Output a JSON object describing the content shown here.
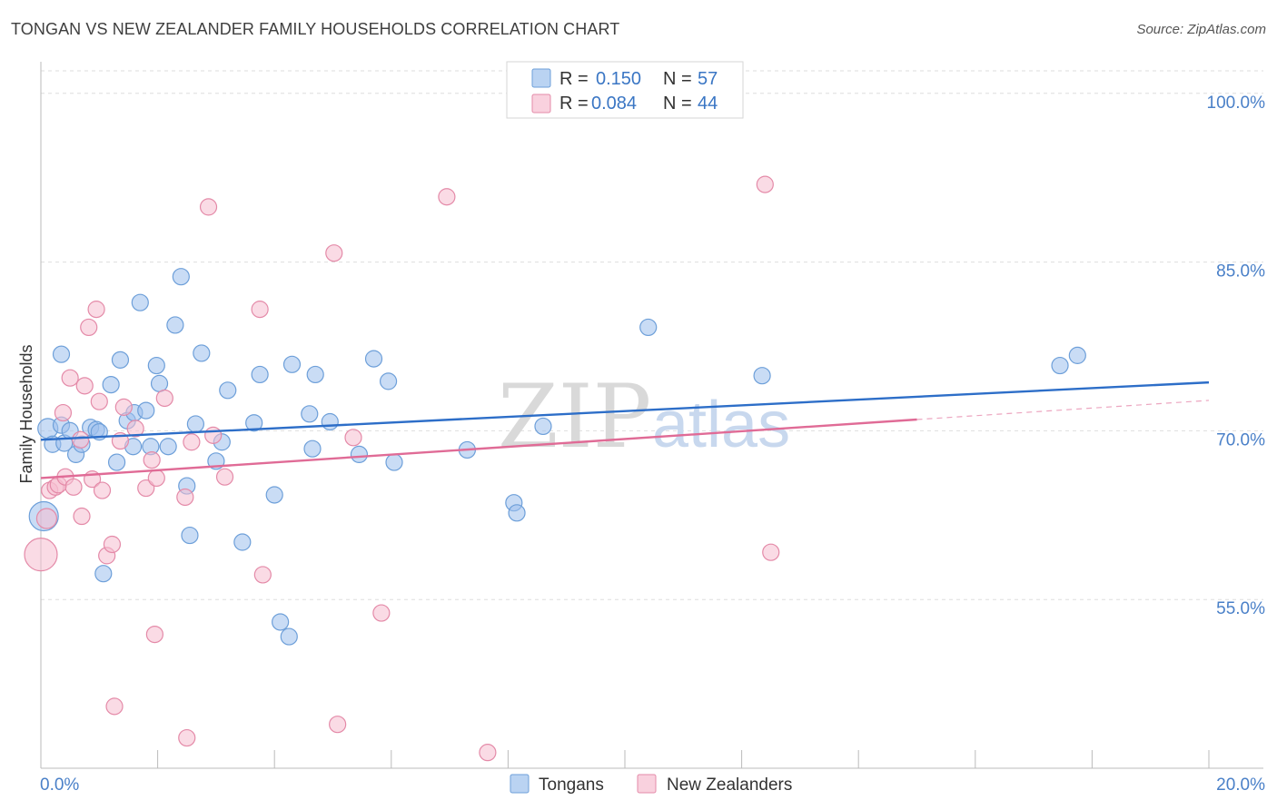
{
  "header": {
    "title": "TONGAN VS NEW ZEALANDER FAMILY HOUSEHOLDS CORRELATION CHART",
    "source": "Source: ZipAtlas.com"
  },
  "watermark": {
    "zip": "ZIP",
    "atlas": "atlas"
  },
  "chart_data": {
    "type": "scatter",
    "title": "TONGAN VS NEW ZEALANDER FAMILY HOUSEHOLDS CORRELATION CHART",
    "xlabel": "",
    "ylabel": "Family Households",
    "xlim": [
      0.0,
      20.0
    ],
    "ylim": [
      40.0,
      102.0
    ],
    "x_tick_labels": [
      "0.0%",
      "20.0%"
    ],
    "y_ticks": [
      55.0,
      70.0,
      85.0,
      100.0
    ],
    "y_tick_labels": [
      "55.0%",
      "70.0%",
      "85.0%",
      "100.0%"
    ],
    "grid": true,
    "legend": {
      "position": "top-center",
      "entries": [
        {
          "r_label": "R =",
          "r": "0.150",
          "n_label": "N =",
          "n": "57"
        },
        {
          "r_label": "R =",
          "r": "0.084",
          "n_label": "N =",
          "n": "44"
        }
      ]
    },
    "series": [
      {
        "name": "Tongans",
        "color": "#9dc0ec",
        "stroke": "#6d9fd9",
        "line_color": "#2d6ec8",
        "trend": {
          "x": [
            0.0,
            20.0
          ],
          "y": [
            69.2,
            74.3
          ]
        },
        "points": [
          [
            0.05,
            62.4,
            16
          ],
          [
            0.12,
            70.2,
            11
          ],
          [
            0.2,
            68.8,
            9
          ],
          [
            0.35,
            70.5,
            9
          ],
          [
            0.4,
            68.9,
            9
          ],
          [
            0.5,
            70.0,
            9
          ],
          [
            0.6,
            67.9,
            9
          ],
          [
            0.7,
            68.8,
            9
          ],
          [
            0.35,
            76.8,
            9
          ],
          [
            0.85,
            70.3,
            9
          ],
          [
            0.95,
            70.1,
            9
          ],
          [
            1.0,
            69.9,
            9
          ],
          [
            1.07,
            57.3,
            9
          ],
          [
            1.2,
            74.1,
            9
          ],
          [
            1.3,
            67.2,
            9
          ],
          [
            1.36,
            76.3,
            9
          ],
          [
            1.48,
            70.9,
            9
          ],
          [
            1.58,
            68.6,
            9
          ],
          [
            1.6,
            71.6,
            9
          ],
          [
            1.7,
            81.4,
            9
          ],
          [
            1.8,
            71.8,
            9
          ],
          [
            1.88,
            68.6,
            9
          ],
          [
            1.98,
            75.8,
            9
          ],
          [
            2.03,
            74.2,
            9
          ],
          [
            2.18,
            68.6,
            9
          ],
          [
            2.3,
            79.4,
            9
          ],
          [
            2.4,
            83.7,
            9
          ],
          [
            2.5,
            65.1,
            9
          ],
          [
            2.55,
            60.7,
            9
          ],
          [
            2.65,
            70.6,
            9
          ],
          [
            2.75,
            76.9,
            9
          ],
          [
            3.0,
            67.3,
            9
          ],
          [
            3.1,
            69.0,
            9
          ],
          [
            3.2,
            73.6,
            9
          ],
          [
            3.45,
            60.1,
            9
          ],
          [
            3.65,
            70.7,
            9
          ],
          [
            3.75,
            75.0,
            9
          ],
          [
            4.0,
            64.3,
            9
          ],
          [
            4.1,
            53.0,
            9
          ],
          [
            4.25,
            51.7,
            9
          ],
          [
            4.3,
            75.9,
            9
          ],
          [
            4.6,
            71.5,
            9
          ],
          [
            4.65,
            68.4,
            9
          ],
          [
            4.7,
            75.0,
            9
          ],
          [
            4.95,
            70.8,
            9
          ],
          [
            5.45,
            67.9,
            9
          ],
          [
            5.7,
            76.4,
            9
          ],
          [
            5.95,
            74.4,
            9
          ],
          [
            6.05,
            67.2,
            9
          ],
          [
            7.3,
            68.3,
            9
          ],
          [
            8.1,
            63.6,
            9
          ],
          [
            8.15,
            62.7,
            9
          ],
          [
            8.6,
            70.4,
            9
          ],
          [
            10.4,
            79.2,
            9
          ],
          [
            12.35,
            74.9,
            9
          ],
          [
            17.45,
            75.8,
            9
          ],
          [
            17.75,
            76.7,
            9
          ]
        ]
      },
      {
        "name": "New Zealanders",
        "color": "#f6bed0",
        "stroke": "#e48aa8",
        "line_color": "#e06b96",
        "trend": {
          "x": [
            0.0,
            15.0
          ],
          "y": [
            65.8,
            71.0
          ]
        },
        "trend_dashed": {
          "x": [
            15.0,
            20.0
          ],
          "y": [
            71.0,
            72.7
          ]
        },
        "points": [
          [
            0.0,
            59.0,
            18
          ],
          [
            0.1,
            62.2,
            11
          ],
          [
            0.15,
            64.7,
            9
          ],
          [
            0.25,
            65.0,
            9
          ],
          [
            0.3,
            65.2,
            9
          ],
          [
            0.38,
            71.6,
            9
          ],
          [
            0.42,
            65.9,
            9
          ],
          [
            0.5,
            74.7,
            9
          ],
          [
            0.56,
            65.0,
            9
          ],
          [
            0.68,
            69.2,
            9
          ],
          [
            0.7,
            62.4,
            9
          ],
          [
            0.75,
            74.0,
            9
          ],
          [
            0.82,
            79.2,
            9
          ],
          [
            0.88,
            65.7,
            9
          ],
          [
            0.95,
            80.8,
            9
          ],
          [
            1.0,
            72.6,
            9
          ],
          [
            1.05,
            64.7,
            9
          ],
          [
            1.13,
            58.9,
            9
          ],
          [
            1.22,
            59.9,
            9
          ],
          [
            1.26,
            45.5,
            9
          ],
          [
            1.36,
            69.1,
            9
          ],
          [
            1.42,
            72.1,
            9
          ],
          [
            1.62,
            70.2,
            9
          ],
          [
            1.8,
            64.9,
            9
          ],
          [
            1.9,
            67.4,
            9
          ],
          [
            1.95,
            51.9,
            9
          ],
          [
            1.98,
            65.8,
            9
          ],
          [
            2.12,
            72.9,
            9
          ],
          [
            2.47,
            64.1,
            9
          ],
          [
            2.5,
            42.7,
            9
          ],
          [
            2.58,
            69.0,
            9
          ],
          [
            2.87,
            89.9,
            9
          ],
          [
            2.95,
            69.6,
            9
          ],
          [
            3.15,
            65.9,
            9
          ],
          [
            3.75,
            80.8,
            9
          ],
          [
            3.8,
            57.2,
            9
          ],
          [
            5.02,
            85.8,
            9
          ],
          [
            5.08,
            43.9,
            9
          ],
          [
            5.35,
            69.4,
            9
          ],
          [
            5.83,
            53.8,
            9
          ],
          [
            6.95,
            90.8,
            9
          ],
          [
            7.65,
            41.4,
            9
          ],
          [
            12.4,
            91.9,
            9
          ],
          [
            12.5,
            59.2,
            9
          ]
        ]
      }
    ]
  }
}
